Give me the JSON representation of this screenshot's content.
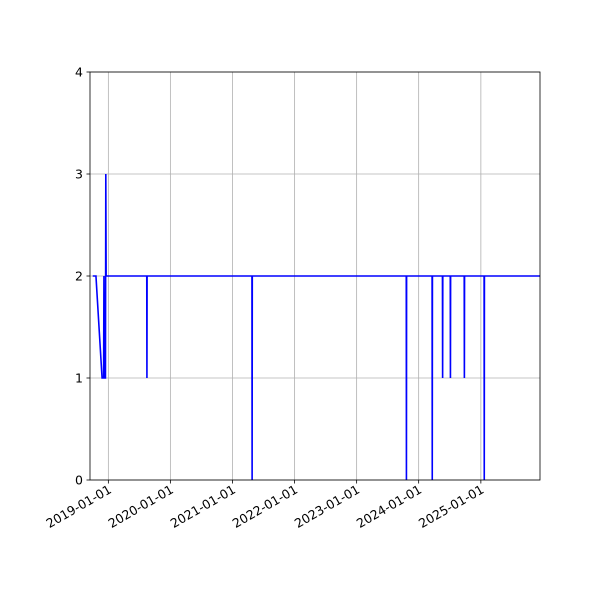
{
  "chart_data": {
    "type": "line",
    "title": "",
    "xlabel": "",
    "ylabel": "",
    "x_type": "date",
    "xlim": [
      "2018-09-15",
      "2025-12-15"
    ],
    "ylim": [
      0,
      4
    ],
    "grid": true,
    "x_ticks": [
      "2019-01-01",
      "2020-01-01",
      "2021-01-01",
      "2022-01-01",
      "2023-01-01",
      "2024-01-01",
      "2025-01-01"
    ],
    "y_ticks": [
      0,
      1,
      2,
      3,
      4
    ],
    "series": [
      {
        "color": "#0000ff",
        "points": [
          [
            "2018-10-01",
            2
          ],
          [
            "2018-10-20",
            2
          ],
          [
            "2018-11-25",
            1
          ],
          [
            "2018-12-04",
            1
          ],
          [
            "2018-12-06",
            2
          ],
          [
            "2018-12-08",
            1
          ],
          [
            "2018-12-15",
            1
          ],
          [
            "2018-12-17",
            3
          ],
          [
            "2018-12-19",
            2
          ],
          [
            "2019-08-15",
            2
          ],
          [
            "2019-08-16",
            1
          ],
          [
            "2019-08-17",
            2
          ],
          [
            "2021-04-25",
            2
          ],
          [
            "2021-04-26",
            0
          ],
          [
            "2021-04-27",
            2
          ],
          [
            "2023-10-20",
            2
          ],
          [
            "2023-10-21",
            0
          ],
          [
            "2023-10-22",
            2
          ],
          [
            "2024-03-20",
            2
          ],
          [
            "2024-03-21",
            0
          ],
          [
            "2024-03-22",
            2
          ],
          [
            "2024-05-20",
            2
          ],
          [
            "2024-05-21",
            1
          ],
          [
            "2024-05-22",
            2
          ],
          [
            "2024-07-05",
            2
          ],
          [
            "2024-07-06",
            1
          ],
          [
            "2024-07-07",
            2
          ],
          [
            "2024-09-25",
            2
          ],
          [
            "2024-09-26",
            1
          ],
          [
            "2024-09-27",
            2
          ],
          [
            "2025-01-20",
            2
          ],
          [
            "2025-01-21",
            0
          ],
          [
            "2025-01-22",
            2
          ],
          [
            "2025-12-15",
            2
          ]
        ]
      }
    ]
  }
}
